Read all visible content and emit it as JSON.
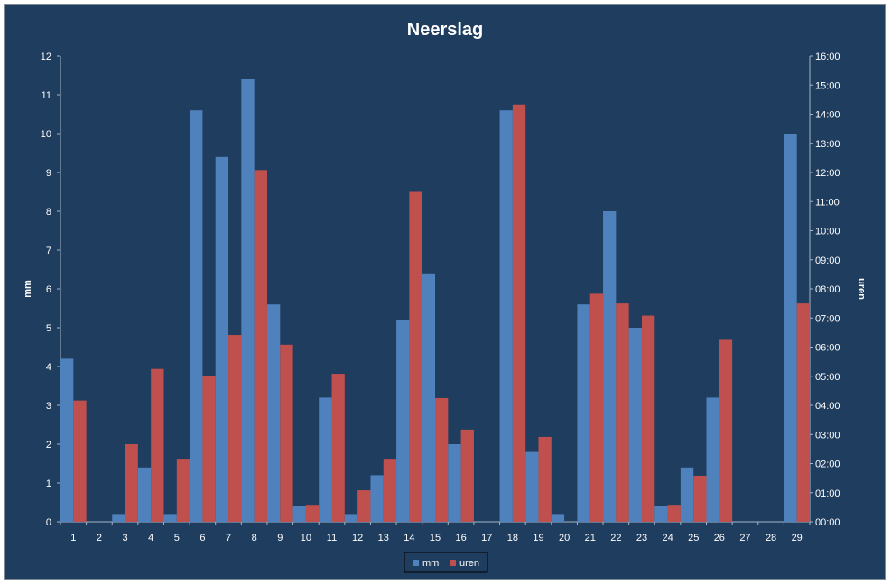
{
  "chart_data": {
    "type": "bar",
    "title": "Neerslag",
    "ylabel": "mm",
    "y2label": "uren",
    "ylim": [
      0,
      12
    ],
    "yticks": [
      "0",
      "1",
      "2",
      "3",
      "4",
      "5",
      "6",
      "7",
      "8",
      "9",
      "10",
      "11",
      "12"
    ],
    "y2lim_hours": [
      0,
      16
    ],
    "y2ticks": [
      "00:00",
      "01:00",
      "02:00",
      "03:00",
      "04:00",
      "05:00",
      "06:00",
      "07:00",
      "08:00",
      "09:00",
      "10:00",
      "11:00",
      "12:00",
      "13:00",
      "14:00",
      "15:00",
      "16:00"
    ],
    "categories": [
      "1",
      "2",
      "3",
      "4",
      "5",
      "6",
      "7",
      "8",
      "9",
      "10",
      "11",
      "12",
      "13",
      "14",
      "15",
      "16",
      "17",
      "18",
      "19",
      "20",
      "21",
      "22",
      "23",
      "24",
      "25",
      "26",
      "27",
      "28",
      "29"
    ],
    "series": [
      {
        "name": "mm",
        "axis": "left",
        "color": "#4f81bd",
        "values": [
          4.2,
          0,
          0.2,
          1.4,
          0.2,
          10.6,
          9.4,
          11.4,
          5.6,
          0.4,
          3.2,
          0.2,
          1.2,
          5.2,
          6.4,
          2.0,
          0,
          10.6,
          1.8,
          0.2,
          5.6,
          8.0,
          5.0,
          0.4,
          1.4,
          3.2,
          0,
          0,
          10.0
        ]
      },
      {
        "name": "uren",
        "axis": "right",
        "color": "#c0504d",
        "values": [
          "04:10",
          "00:00",
          "02:40",
          "05:15",
          "02:10",
          "05:00",
          "06:25",
          "12:05",
          "06:05",
          "00:35",
          "05:05",
          "01:05",
          "02:10",
          "11:20",
          "04:15",
          "03:10",
          "00:00",
          "14:20",
          "02:55",
          "00:00",
          "07:50",
          "07:30",
          "07:05",
          "00:35",
          "01:35",
          "06:15",
          "00:00",
          "00:00",
          "07:30"
        ]
      }
    ],
    "legend_position": "bottom",
    "grid": false
  }
}
